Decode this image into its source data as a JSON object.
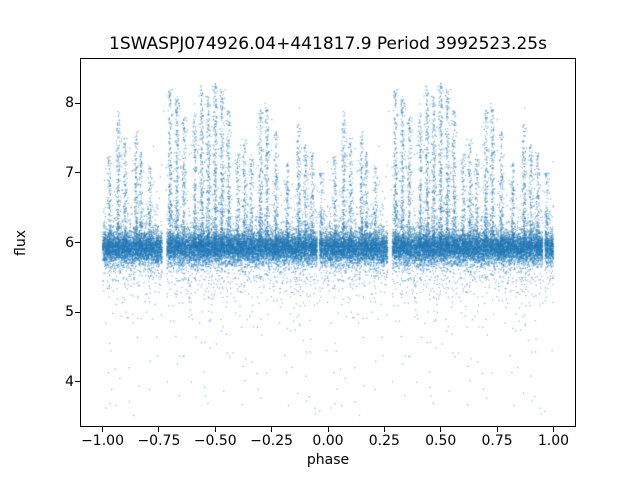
{
  "chart_data": {
    "type": "scatter",
    "title": "1SWASPJ074926.04+441817.9 Period 3992523.25s",
    "xlabel": "phase",
    "ylabel": "flux",
    "xlim": [
      -1.1,
      1.1
    ],
    "ylim": [
      3.35,
      8.65
    ],
    "grid": false,
    "legend": "none",
    "x_ticks": [
      {
        "value": -1.0,
        "label": "−1.00"
      },
      {
        "value": -0.75,
        "label": "−0.75"
      },
      {
        "value": -0.5,
        "label": "−0.50"
      },
      {
        "value": -0.25,
        "label": "−0.25"
      },
      {
        "value": 0.0,
        "label": "0.00"
      },
      {
        "value": 0.25,
        "label": "0.25"
      },
      {
        "value": 0.5,
        "label": "0.50"
      },
      {
        "value": 0.75,
        "label": "0.75"
      },
      {
        "value": 1.0,
        "label": "1.00"
      }
    ],
    "y_ticks": [
      {
        "value": 4,
        "label": "4"
      },
      {
        "value": 5,
        "label": "5"
      },
      {
        "value": 6,
        "label": "6"
      },
      {
        "value": 7,
        "label": "7"
      },
      {
        "value": 8,
        "label": "8"
      }
    ],
    "marker_color": "#1f77b4",
    "marker_alpha": 0.55,
    "marker_size_px": 1.2,
    "scatter_model": {
      "description": "Phase-folded light curve plotted twice (phase p and p-1), dense quiescent band near flux 5.9 with vertical flare spikes and sparse faint outliers",
      "duplicated_halves": true,
      "phase_range": [
        0.0,
        1.0
      ],
      "baseline": {
        "n": 15000,
        "flux_mean": 5.92,
        "sigma_core": 0.11,
        "sigma_mid": 0.28,
        "sigma_wide": 0.55,
        "frac_core": 0.82,
        "frac_mid": 0.14,
        "frac_wide": 0.04
      },
      "gaps": [
        [
          0.265,
          0.285
        ],
        [
          0.952,
          0.962
        ]
      ],
      "flare_spikes": [
        {
          "phase": 0.03,
          "flux_max": 7.3,
          "n": 140
        },
        {
          "phase": 0.07,
          "flux_max": 7.9,
          "n": 200
        },
        {
          "phase": 0.1,
          "flux_max": 7.5,
          "n": 150
        },
        {
          "phase": 0.15,
          "flux_max": 7.6,
          "n": 170
        },
        {
          "phase": 0.17,
          "flux_max": 7.3,
          "n": 140
        },
        {
          "phase": 0.21,
          "flux_max": 7.1,
          "n": 120
        },
        {
          "phase": 0.3,
          "flux_max": 8.2,
          "n": 250
        },
        {
          "phase": 0.33,
          "flux_max": 8.1,
          "n": 230
        },
        {
          "phase": 0.36,
          "flux_max": 7.8,
          "n": 180
        },
        {
          "phase": 0.41,
          "flux_max": 7.9,
          "n": 200
        },
        {
          "phase": 0.44,
          "flux_max": 8.25,
          "n": 260
        },
        {
          "phase": 0.47,
          "flux_max": 8.1,
          "n": 240
        },
        {
          "phase": 0.5,
          "flux_max": 8.3,
          "n": 280
        },
        {
          "phase": 0.53,
          "flux_max": 8.2,
          "n": 260
        },
        {
          "phase": 0.56,
          "flux_max": 7.9,
          "n": 200
        },
        {
          "phase": 0.6,
          "flux_max": 7.3,
          "n": 140
        },
        {
          "phase": 0.63,
          "flux_max": 7.5,
          "n": 160
        },
        {
          "phase": 0.66,
          "flux_max": 7.2,
          "n": 130
        },
        {
          "phase": 0.7,
          "flux_max": 7.9,
          "n": 210
        },
        {
          "phase": 0.73,
          "flux_max": 8.0,
          "n": 220
        },
        {
          "phase": 0.77,
          "flux_max": 7.6,
          "n": 180
        },
        {
          "phase": 0.82,
          "flux_max": 7.2,
          "n": 140
        },
        {
          "phase": 0.87,
          "flux_max": 7.7,
          "n": 180
        },
        {
          "phase": 0.9,
          "flux_max": 7.4,
          "n": 150
        },
        {
          "phase": 0.93,
          "flux_max": 7.3,
          "n": 140
        },
        {
          "phase": 0.97,
          "flux_max": 7.0,
          "n": 110
        }
      ],
      "spike_phase_width": 0.0045,
      "low_outliers": {
        "n": 170,
        "flux_min": 3.5,
        "flux_max": 5.5
      }
    }
  }
}
